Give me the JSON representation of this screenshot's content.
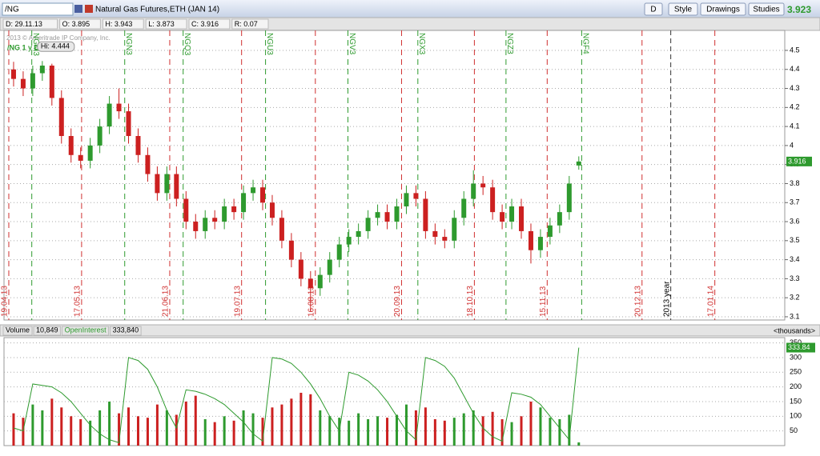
{
  "toolbar": {
    "symbol": "/NG",
    "description": "Natural Gas Futures,ETH (JAN 14)",
    "buttons": [
      "D",
      "Style",
      "Drawings",
      "Studies"
    ],
    "last_price": "3.923"
  },
  "info_bar": {
    "cells": [
      "D: 29.11.13",
      "O: 3.895",
      "H: 3.943",
      "L: 3.873",
      "C: 3.916",
      "R: 0.07"
    ]
  },
  "chart_data": [
    {
      "type": "candlestick",
      "title": "/NG 1 y D",
      "watermark": "2013 © Ameritrade IP Company, Inc.",
      "hi_label": "Hi: 4.444",
      "categories": [
        null,
        null,
        null,
        null,
        null,
        null,
        null,
        null,
        null,
        null,
        null,
        null,
        null,
        null,
        null,
        null,
        null,
        null,
        null,
        null,
        null,
        null,
        null,
        null,
        null,
        null,
        null,
        null,
        null,
        null,
        null,
        null,
        null,
        null,
        null,
        null,
        null,
        null,
        null,
        null,
        null,
        null,
        null,
        null,
        null,
        null,
        null,
        null,
        null,
        null,
        null,
        null,
        null,
        null,
        null,
        null,
        null,
        null,
        null,
        null
      ],
      "open": [
        4.4,
        4.35,
        4.3,
        4.38,
        4.42,
        4.25,
        4.05,
        3.95,
        3.92,
        4.0,
        4.1,
        4.22,
        4.18,
        4.05,
        3.95,
        3.85,
        3.75,
        3.85,
        3.72,
        3.6,
        3.55,
        3.62,
        3.6,
        3.68,
        3.65,
        3.75,
        3.78,
        3.7,
        3.62,
        3.5,
        3.4,
        3.3,
        3.25,
        3.32,
        3.4,
        3.48,
        3.52,
        3.55,
        3.62,
        3.65,
        3.6,
        3.68,
        3.75,
        3.72,
        3.55,
        3.52,
        3.5,
        3.62,
        3.72,
        3.8,
        3.78,
        3.65,
        3.6,
        3.68,
        3.55,
        3.45,
        3.52,
        3.58,
        3.65,
        3.895
      ],
      "high": [
        4.44,
        4.39,
        4.42,
        4.444,
        4.43,
        4.29,
        4.09,
        3.99,
        4.04,
        4.14,
        4.26,
        4.3,
        4.22,
        4.09,
        3.99,
        3.89,
        3.89,
        3.89,
        3.76,
        3.64,
        3.66,
        3.66,
        3.72,
        3.72,
        3.79,
        3.82,
        3.82,
        3.74,
        3.66,
        3.54,
        3.44,
        3.34,
        3.36,
        3.44,
        3.52,
        3.56,
        3.59,
        3.66,
        3.69,
        3.69,
        3.72,
        3.79,
        3.79,
        3.76,
        3.59,
        3.56,
        3.66,
        3.76,
        3.87,
        3.84,
        3.82,
        3.69,
        3.72,
        3.72,
        3.59,
        3.56,
        3.62,
        3.69,
        3.84,
        3.943
      ],
      "low": [
        4.31,
        4.26,
        4.26,
        4.34,
        4.21,
        4.01,
        3.91,
        3.88,
        3.88,
        3.96,
        4.06,
        4.14,
        4.01,
        3.91,
        3.81,
        3.71,
        3.71,
        3.68,
        3.56,
        3.51,
        3.51,
        3.56,
        3.56,
        3.61,
        3.61,
        3.71,
        3.66,
        3.58,
        3.46,
        3.36,
        3.26,
        3.13,
        3.21,
        3.28,
        3.36,
        3.44,
        3.48,
        3.51,
        3.58,
        3.56,
        3.56,
        3.64,
        3.68,
        3.51,
        3.48,
        3.46,
        3.46,
        3.58,
        3.68,
        3.74,
        3.61,
        3.56,
        3.56,
        3.51,
        3.38,
        3.41,
        3.48,
        3.54,
        3.61,
        3.873
      ],
      "close": [
        4.35,
        4.3,
        4.38,
        4.42,
        4.25,
        4.05,
        3.95,
        3.92,
        4.0,
        4.1,
        4.22,
        4.18,
        4.05,
        3.95,
        3.85,
        3.75,
        3.85,
        3.72,
        3.6,
        3.55,
        3.62,
        3.6,
        3.68,
        3.65,
        3.75,
        3.78,
        3.7,
        3.62,
        3.5,
        3.4,
        3.3,
        3.25,
        3.32,
        3.4,
        3.48,
        3.52,
        3.55,
        3.62,
        3.65,
        3.6,
        3.68,
        3.75,
        3.72,
        3.55,
        3.52,
        3.5,
        3.62,
        3.72,
        3.8,
        3.78,
        3.65,
        3.6,
        3.68,
        3.55,
        3.45,
        3.52,
        3.58,
        3.65,
        3.8,
        3.916
      ],
      "up_color": "#2e9a2e",
      "down_color": "#cc2020",
      "xlim": [
        -1,
        80.5
      ],
      "xticks": [
        {
          "value": -0.5,
          "label": "19.04.13"
        },
        {
          "value": 7.1,
          "label": "17.05.13"
        },
        {
          "value": 16.3,
          "label": "21.06.13"
        },
        {
          "value": 23.8,
          "label": "19.07.13"
        },
        {
          "value": 31.5,
          "label": "16.08.13"
        },
        {
          "value": 40.5,
          "label": "20.09.13"
        },
        {
          "value": 48.1,
          "label": "18.10.13"
        },
        {
          "value": 55.7,
          "label": "15.11.13"
        },
        {
          "value": 65.6,
          "label": "20.12.13"
        },
        {
          "value": 73.2,
          "label": "17.01.14"
        }
      ],
      "year_marker": {
        "value": 68.6,
        "label": "2013 year"
      },
      "contract_markers": [
        {
          "value": 1.9,
          "label": "NGM3"
        },
        {
          "value": 11.6,
          "label": "NGN3"
        },
        {
          "value": 17.7,
          "label": "NGQ3"
        },
        {
          "value": 26.3,
          "label": "NGU3"
        },
        {
          "value": 34.9,
          "label": "NGV3"
        },
        {
          "value": 42.2,
          "label": "NGX3"
        },
        {
          "value": 51.4,
          "label": "NGZ3"
        },
        {
          "value": 59.3,
          "label": "NGF4"
        }
      ],
      "ylim": [
        3.083,
        4.605
      ],
      "yticks": [
        3.1,
        3.2,
        3.3,
        3.4,
        3.5,
        3.6,
        3.7,
        3.8,
        3.9,
        4,
        4.1,
        4.2,
        4.3,
        4.4,
        4.5
      ],
      "grid": true
    },
    {
      "type": "bar+line",
      "units": "<thousands>",
      "xlim": [
        -1,
        80.5
      ],
      "ylim": [
        0,
        368
      ],
      "yticks": [
        50,
        100,
        150,
        200,
        250,
        300,
        350
      ],
      "grid": true,
      "series": [
        {
          "name": "Volume",
          "value_label": "10,849",
          "values": [
            110,
            95,
            140,
            120,
            160,
            130,
            100,
            90,
            85,
            120,
            150,
            110,
            130,
            100,
            95,
            140,
            120,
            105,
            150,
            170,
            90,
            80,
            100,
            85,
            120,
            110,
            95,
            130,
            140,
            160,
            180,
            175,
            120,
            100,
            95,
            85,
            110,
            90,
            100,
            95,
            105,
            140,
            120,
            130,
            90,
            85,
            95,
            110,
            120,
            100,
            115,
            90,
            80,
            100,
            150,
            130,
            95,
            90,
            105,
            10.849
          ]
        },
        {
          "name": "OpenInterest",
          "value_label": "333,840",
          "color": "#2e9a2e",
          "values": [
            60,
            50,
            210,
            205,
            200,
            180,
            150,
            110,
            70,
            40,
            20,
            10,
            300,
            290,
            260,
            200,
            120,
            60,
            190,
            185,
            175,
            160,
            140,
            110,
            80,
            40,
            15,
            300,
            295,
            280,
            250,
            210,
            160,
            100,
            50,
            250,
            240,
            220,
            190,
            150,
            100,
            50,
            20,
            300,
            290,
            270,
            230,
            170,
            110,
            60,
            30,
            15,
            180,
            175,
            165,
            140,
            100,
            60,
            20,
            333.84
          ]
        }
      ]
    }
  ]
}
